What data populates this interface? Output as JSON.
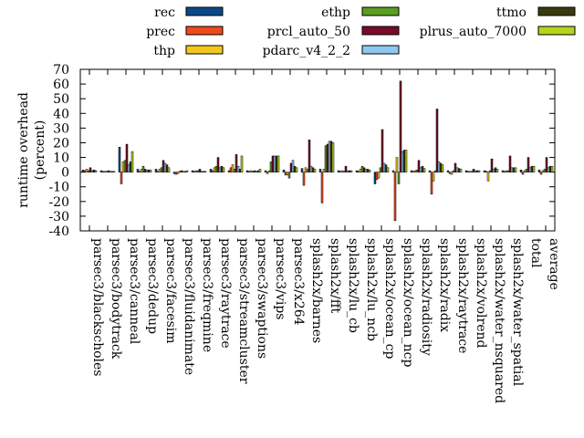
{
  "chart_data": {
    "type": "bar",
    "title": "",
    "xlabel": "",
    "ylabel": "runtime overhead (percent)",
    "ylabel_lines": [
      "runtime overhead",
      "(percent)"
    ],
    "ylim": [
      -40,
      70
    ],
    "yticks": [
      -40,
      -30,
      -20,
      -10,
      0,
      10,
      20,
      30,
      40,
      50,
      60,
      70
    ],
    "grid": false,
    "legend_position": "top",
    "categories": [
      "parsec3/blackscholes",
      "parsec3/bodytrack",
      "parsec3/canneal",
      "parsec3/dedup",
      "parsec3/facesim",
      "parsec3/fluidanimate",
      "parsec3/freqmine",
      "parsec3/raytrace",
      "parsec3/streamcluster",
      "parsec3/swaptions",
      "parsec3/vips",
      "parsec3/x264",
      "splash2x/barnes",
      "splash2x/fft",
      "splash2x/lu_cb",
      "splash2x/lu_ncb",
      "splash2x/ocean_cp",
      "splash2x/ocean_ncp",
      "splash2x/radiosity",
      "splash2x/radix",
      "splash2x/raytrace",
      "splash2x/volrend",
      "splash2x/water_nsquared",
      "splash2x/water_spatial",
      "total",
      "average"
    ],
    "series": [
      {
        "name": "rec",
        "color": "#0b4a8a",
        "values": [
          1.5,
          1.0,
          17.0,
          2.0,
          2.0,
          -1.0,
          1.0,
          2.0,
          1.0,
          1.0,
          1.0,
          1.5,
          2.5,
          2.0,
          1.0,
          1.0,
          -8.0,
          1.0,
          1.0,
          1.0,
          1.0,
          1.0,
          1.0,
          1.0,
          1.5,
          1.5
        ]
      },
      {
        "name": "prec",
        "color": "#f04a1a",
        "values": [
          1.0,
          0.5,
          -8.0,
          0.5,
          0.5,
          -1.5,
          0.5,
          1.0,
          3.0,
          0.5,
          -1.0,
          -2.0,
          -9.0,
          -21.0,
          0.5,
          0.5,
          -5.0,
          -33.0,
          0.5,
          -15.0,
          -1.0,
          0.5,
          0.5,
          0.5,
          -1.5,
          -1.5
        ]
      },
      {
        "name": "thp",
        "color": "#f2c91a",
        "values": [
          2.0,
          0.5,
          7.0,
          2.0,
          2.0,
          -1.0,
          1.0,
          3.0,
          5.0,
          1.0,
          1.0,
          -2.0,
          3.0,
          2.0,
          1.0,
          2.0,
          -4.0,
          10.0,
          1.0,
          -6.0,
          -1.5,
          0.5,
          -6.0,
          1.0,
          1.0,
          1.0
        ]
      },
      {
        "name": "ethp",
        "color": "#5a9e22",
        "values": [
          1.0,
          0.5,
          8.0,
          4.0,
          3.0,
          0.5,
          1.0,
          4.0,
          2.0,
          0.5,
          7.0,
          -4.0,
          2.0,
          18.0,
          0.5,
          4.0,
          3.0,
          -8.0,
          1.5,
          1.0,
          1.0,
          0.5,
          1.0,
          1.0,
          2.0,
          2.0
        ]
      },
      {
        "name": "prcl_auto_50",
        "color": "#7a0a2a",
        "values": [
          3.0,
          1.0,
          19.0,
          2.0,
          8.0,
          1.0,
          2.0,
          10.0,
          12.0,
          1.0,
          11.0,
          6.0,
          22.0,
          19.0,
          4.0,
          3.0,
          29.0,
          62.0,
          8.0,
          43.0,
          6.0,
          2.0,
          9.0,
          11.0,
          10.0,
          10.0
        ]
      },
      {
        "name": "pdarc_v4_2_2",
        "color": "#8ec8f0",
        "values": [
          1.0,
          0.5,
          5.0,
          1.5,
          6.0,
          0.5,
          0.5,
          3.0,
          4.0,
          0.5,
          11.0,
          8.0,
          4.0,
          21.0,
          1.0,
          2.0,
          6.0,
          14.0,
          3.0,
          7.0,
          3.0,
          1.0,
          2.0,
          3.0,
          3.0,
          3.0
        ]
      },
      {
        "name": "ttmo",
        "color": "#3a3a10",
        "values": [
          1.5,
          0.5,
          7.0,
          1.5,
          5.0,
          0.5,
          0.5,
          4.0,
          2.0,
          1.0,
          11.0,
          4.0,
          3.0,
          21.0,
          1.0,
          2.0,
          5.0,
          15.0,
          4.0,
          6.0,
          2.5,
          1.0,
          3.0,
          3.0,
          4.0,
          4.0
        ]
      },
      {
        "name": "plrus_auto_7000",
        "color": "#b5d41a",
        "values": [
          1.0,
          0.5,
          14.0,
          1.5,
          3.0,
          1.0,
          0.5,
          3.0,
          11.0,
          2.0,
          11.0,
          3.0,
          2.0,
          20.0,
          1.0,
          1.5,
          3.0,
          15.0,
          2.5,
          5.0,
          2.0,
          1.0,
          2.0,
          3.0,
          4.0,
          4.0
        ]
      }
    ]
  }
}
